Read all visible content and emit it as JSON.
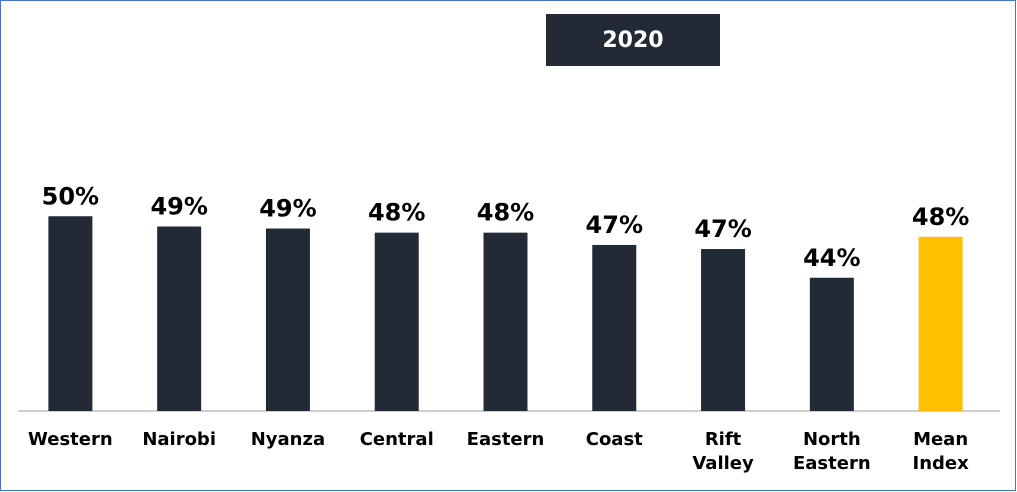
{
  "chart_data": {
    "type": "bar",
    "title": "2020",
    "categories": [
      "Western",
      "Nairobi",
      "Nyanza",
      "Central",
      "Eastern",
      "Coast",
      "Rift\nValley",
      "North\nEastern",
      "Mean\nIndex"
    ],
    "values": [
      50,
      49.0,
      48.8,
      48.4,
      48.4,
      47.2,
      46.8,
      44.0,
      48.0
    ],
    "value_labels": [
      "50%",
      "49%",
      "49%",
      "48%",
      "48%",
      "47%",
      "47%",
      "44%",
      "48%"
    ],
    "colors": [
      "#222a35",
      "#222a35",
      "#222a35",
      "#222a35",
      "#222a35",
      "#222a35",
      "#222a35",
      "#222a35",
      "#ffc000"
    ],
    "ylim": [
      31,
      51
    ]
  }
}
